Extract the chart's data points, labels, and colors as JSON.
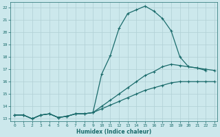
{
  "xlabel": "Humidex (Indice chaleur)",
  "bg_color": "#cce8ec",
  "grid_color": "#b0cfd5",
  "line_color": "#1a6b6b",
  "xlim": [
    -0.5,
    23.3
  ],
  "ylim": [
    12.8,
    22.4
  ],
  "xticks": [
    0,
    1,
    2,
    3,
    4,
    5,
    6,
    7,
    8,
    9,
    10,
    11,
    12,
    13,
    14,
    15,
    16,
    17,
    18,
    19,
    20,
    21,
    22,
    23
  ],
  "yticks": [
    13,
    14,
    15,
    16,
    17,
    18,
    19,
    20,
    21,
    22
  ],
  "line1_x": [
    0,
    1,
    2,
    3,
    4,
    5,
    6,
    7,
    8,
    9,
    10,
    11,
    12,
    13,
    14,
    15,
    16,
    17,
    18,
    19,
    20,
    21,
    22
  ],
  "line1_y": [
    13.3,
    13.3,
    13.0,
    13.3,
    13.4,
    13.1,
    13.2,
    13.4,
    13.4,
    13.5,
    16.6,
    18.1,
    20.3,
    21.5,
    21.8,
    22.1,
    21.7,
    21.1,
    20.1,
    18.0,
    17.2,
    17.1,
    16.9
  ],
  "line2_x": [
    0,
    1,
    2,
    3,
    4,
    5,
    6,
    7,
    8,
    9,
    10,
    11,
    12,
    13,
    14,
    15,
    16,
    17,
    18,
    19,
    20,
    21,
    22,
    23
  ],
  "line2_y": [
    13.3,
    13.3,
    13.0,
    13.3,
    13.4,
    13.1,
    13.2,
    13.4,
    13.4,
    13.5,
    14.0,
    14.5,
    15.0,
    15.5,
    16.0,
    16.5,
    16.8,
    17.2,
    17.4,
    17.3,
    17.2,
    17.1,
    17.0,
    16.9
  ],
  "line3_x": [
    0,
    1,
    2,
    3,
    4,
    5,
    6,
    7,
    8,
    9,
    10,
    11,
    12,
    13,
    14,
    15,
    16,
    17,
    18,
    19,
    20,
    21,
    22,
    23
  ],
  "line3_y": [
    13.3,
    13.3,
    13.0,
    13.3,
    13.4,
    13.1,
    13.2,
    13.4,
    13.4,
    13.5,
    13.8,
    14.1,
    14.4,
    14.7,
    15.0,
    15.3,
    15.5,
    15.7,
    15.9,
    16.0,
    16.0,
    16.0,
    16.0,
    16.0
  ]
}
